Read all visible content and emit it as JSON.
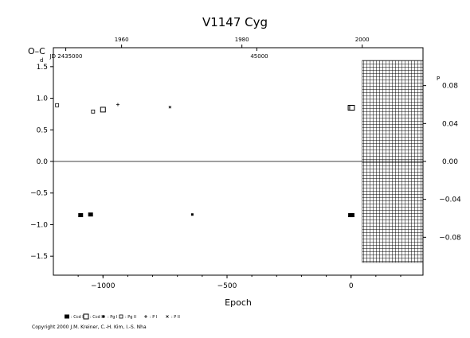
{
  "chart_data": {
    "type": "scatter",
    "title": "V1147  Cyg",
    "xlabel": "Epoch",
    "ylabel": "O–C",
    "ylabel_unit": "d",
    "right_axis_unit": "P",
    "x_range": [
      -1200,
      290
    ],
    "y_range": [
      -1.8,
      1.8
    ],
    "right_y_range": [
      -0.12,
      0.12
    ],
    "x_ticks": [
      {
        "value": -1000,
        "label": "−1000"
      },
      {
        "value": -500,
        "label": "−500"
      },
      {
        "value": 0,
        "label": "0"
      }
    ],
    "y_ticks": [
      {
        "value": 1.5,
        "label": "1.5"
      },
      {
        "value": 1.0,
        "label": "1.0"
      },
      {
        "value": 0.5,
        "label": "0.5"
      },
      {
        "value": 0.0,
        "label": "0.0"
      },
      {
        "value": -0.5,
        "label": "−0.5"
      },
      {
        "value": -1.0,
        "label": "−1.0"
      },
      {
        "value": -1.5,
        "label": "−1.5"
      }
    ],
    "right_ticks": [
      {
        "value": 0.08,
        "label": "0.08"
      },
      {
        "value": 0.04,
        "label": "0.04"
      },
      {
        "value": 0.0,
        "label": "0.00"
      },
      {
        "value": -0.04,
        "label": "−0.04"
      },
      {
        "value": -0.08,
        "label": "−0.08"
      }
    ],
    "top_year_ticks": [
      {
        "epoch": -925,
        "label": "1960"
      },
      {
        "epoch": -440,
        "label": "1980"
      },
      {
        "epoch": 45,
        "label": "2000"
      }
    ],
    "top_jd_ticks": [
      {
        "epoch": -1150,
        "label": "JD 2435000"
      },
      {
        "epoch": -380,
        "label": "45000"
      }
    ],
    "reference_line_y": 0.0,
    "hatched_region": {
      "x_from": 45,
      "x_to": 290
    },
    "series": [
      {
        "name": ": Ccd I",
        "marker": "filled-square",
        "points": [
          [
            -1090,
            -0.85
          ],
          [
            -1050,
            -0.84
          ],
          [
            -2,
            -0.85
          ],
          [
            4,
            -0.85
          ]
        ]
      },
      {
        "name": ": Ccd II",
        "marker": "open-square",
        "points": [
          [
            -1000,
            0.82
          ],
          [
            -2,
            0.85
          ],
          [
            4,
            0.85
          ]
        ]
      },
      {
        "name": ": Pg I",
        "marker": "small-filled-square",
        "points": [
          [
            -640,
            -0.84
          ]
        ]
      },
      {
        "name": ": Pg II",
        "marker": "small-open-square",
        "points": [
          [
            -1185,
            0.89
          ],
          [
            -1040,
            0.79
          ]
        ]
      },
      {
        "name": ": P I",
        "marker": "plus",
        "points": [
          [
            -940,
            0.9
          ]
        ]
      },
      {
        "name": ": P II",
        "marker": "cross",
        "points": [
          [
            -730,
            0.86
          ]
        ]
      }
    ]
  },
  "copyright": "Copyright 2000 J.M. Kreiner, C.-H. Kim, I.-S. Nha"
}
